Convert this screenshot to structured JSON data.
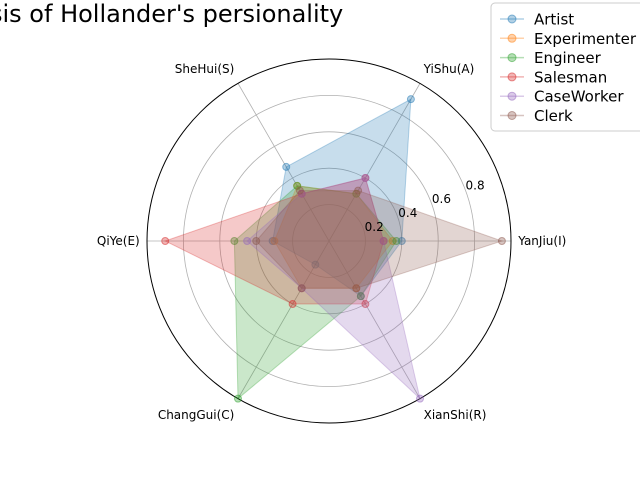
{
  "chart_data": {
    "type": "radar",
    "title": "sis of Hollander's persionality",
    "axes": [
      "YanJiu(I)",
      "YiShu(A)",
      "SheHui(S)",
      "QiYe(E)",
      "ChangGui(C)",
      "XianShi(R)"
    ],
    "rlim": [
      0,
      1.0
    ],
    "rticks": [
      0.2,
      0.4,
      0.6,
      0.8
    ],
    "grid": true,
    "legend_position": "upper-right",
    "series": [
      {
        "name": "Artist",
        "color": "#1f77b4",
        "values": [
          0.4,
          0.9,
          0.47,
          0.31,
          0.15,
          0.35
        ]
      },
      {
        "name": "Experimenter",
        "color": "#ff7f0e",
        "values": [
          0.35,
          0.3,
          0.35,
          0.3,
          0.3,
          0.3
        ]
      },
      {
        "name": "Engineer",
        "color": "#2ca02c",
        "values": [
          0.37,
          0.3,
          0.35,
          0.52,
          1.0,
          0.35
        ]
      },
      {
        "name": "Salesman",
        "color": "#d62728",
        "values": [
          0.3,
          0.4,
          0.3,
          0.9,
          0.4,
          0.4
        ]
      },
      {
        "name": "CaseWorker",
        "color": "#9467bd",
        "values": [
          0.3,
          0.4,
          0.3,
          0.45,
          0.3,
          1.0
        ]
      },
      {
        "name": "Clerk",
        "color": "#8c564b",
        "values": [
          0.95,
          0.32,
          0.32,
          0.4,
          0.3,
          0.3
        ]
      }
    ]
  }
}
